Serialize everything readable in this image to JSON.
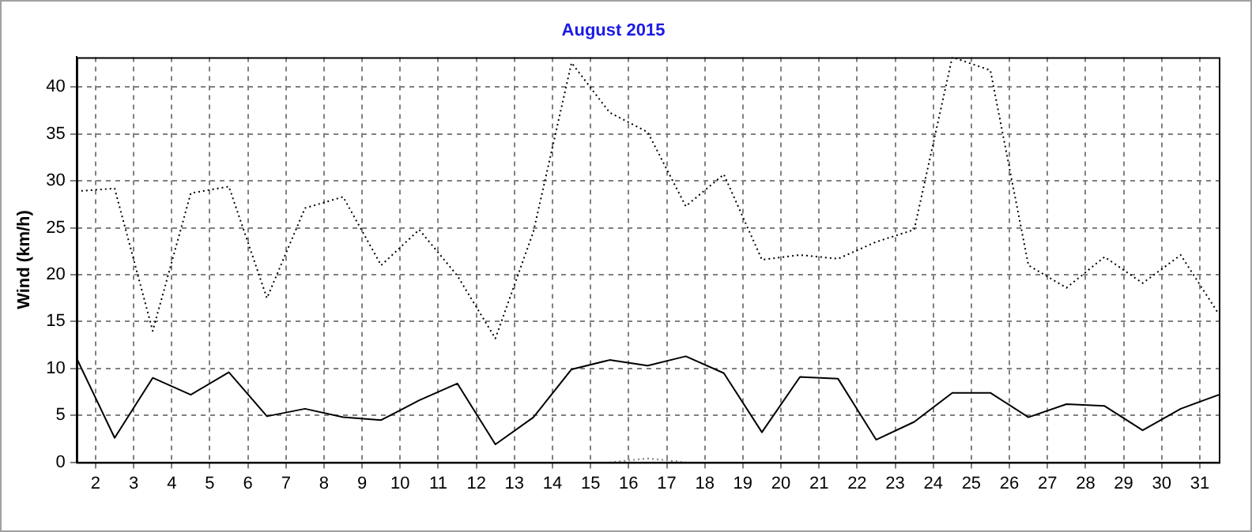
{
  "chart_data": {
    "type": "line",
    "title": "August 2015",
    "ylabel": "Wind (km/h)",
    "x": [
      1.5,
      2.5,
      3.5,
      4.5,
      5.5,
      6.5,
      7.5,
      8.5,
      9.5,
      10.5,
      11.5,
      12.5,
      13.5,
      14.5,
      15.5,
      16.5,
      17.5,
      18.5,
      19.5,
      20.5,
      21.5,
      22.5,
      23.5,
      24.5,
      25.5,
      26.5,
      27.5,
      28.5,
      29.5,
      30.5,
      31.5
    ],
    "series": [
      {
        "color": "#000000",
        "line_style": "dotted",
        "values": [
          28.9,
          29.2,
          14.0,
          28.7,
          29.4,
          17.5,
          27.1,
          28.3,
          21.0,
          24.8,
          19.9,
          13.2,
          24.6,
          42.6,
          37.3,
          35.2,
          27.3,
          30.7,
          21.6,
          22.1,
          21.7,
          23.5,
          24.8,
          43.2,
          41.8,
          21.0,
          18.6,
          21.9,
          19.1,
          22.1,
          15.8
        ]
      },
      {
        "color": "#000000",
        "line_style": "solid",
        "values": [
          11.1,
          2.6,
          9.0,
          7.2,
          9.6,
          4.9,
          5.7,
          4.8,
          4.5,
          6.6,
          8.4,
          1.9,
          4.8,
          9.9,
          10.9,
          10.3,
          11.3,
          9.5,
          3.2,
          9.1,
          8.9,
          2.4,
          4.3,
          7.4,
          7.4,
          4.8,
          6.2,
          6.0,
          3.4,
          5.7,
          7.2
        ]
      },
      {
        "color": "#808080",
        "line_style": "dotted",
        "values": [
          null,
          null,
          null,
          null,
          null,
          null,
          null,
          null,
          null,
          null,
          null,
          null,
          null,
          null,
          0,
          0.4,
          0,
          null,
          null,
          null,
          null,
          null,
          null,
          null,
          null,
          null,
          null,
          null,
          null,
          null,
          null
        ]
      }
    ],
    "xlim": [
      1.5,
      31.5
    ],
    "xticks": [
      2,
      3,
      4,
      5,
      6,
      7,
      8,
      9,
      10,
      11,
      12,
      13,
      14,
      15,
      16,
      17,
      18,
      19,
      20,
      21,
      22,
      23,
      24,
      25,
      26,
      27,
      28,
      29,
      30,
      31
    ],
    "ylim": [
      0,
      43.2
    ],
    "yticks": [
      0,
      5,
      10,
      15,
      20,
      25,
      30,
      35,
      40
    ],
    "grid": true,
    "marker": "none",
    "legend": false
  }
}
